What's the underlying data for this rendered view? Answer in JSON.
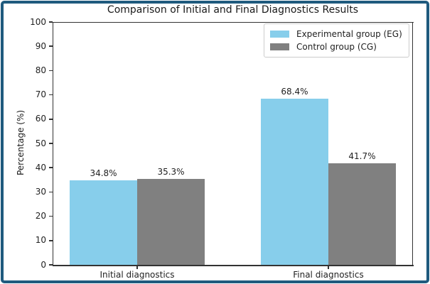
{
  "frame": {
    "border_color": "#1e5a7e"
  },
  "chart_data": {
    "type": "bar",
    "title": "Comparison of Initial and Final Diagnostics Results",
    "xlabel": "",
    "ylabel": "Percentage (%)",
    "categories": [
      "Initial diagnostics",
      "Final diagnostics"
    ],
    "series": [
      {
        "name": "Experimental group (EG)",
        "color": "#87CEEB",
        "values": [
          34.8,
          68.4
        ],
        "labels": [
          "34.8%",
          "68.4%"
        ]
      },
      {
        "name": "Control group (CG)",
        "color": "#808080",
        "values": [
          35.3,
          41.7
        ],
        "labels": [
          "35.3%",
          "41.7%"
        ]
      }
    ],
    "ylim": [
      0,
      100
    ],
    "yticks": [
      0,
      10,
      20,
      30,
      40,
      50,
      60,
      70,
      80,
      90,
      100
    ],
    "grid": false,
    "legend_position": "upper right"
  }
}
